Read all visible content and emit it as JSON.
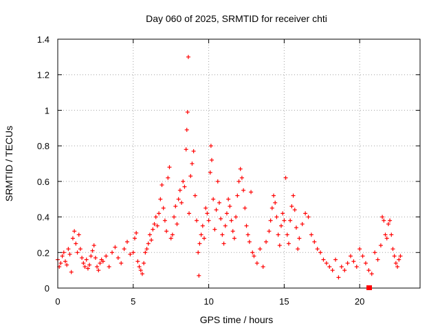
{
  "chart_data": {
    "type": "scatter",
    "title": "Day 060 of 2025, SRMTID for receiver chti",
    "xlabel": "GPS time / hours",
    "ylabel": "SRMTID / TECUs",
    "xlim": [
      0,
      24
    ],
    "ylim": [
      0,
      1.4
    ],
    "xticks": [
      0,
      5,
      10,
      15,
      20
    ],
    "yticks": [
      0,
      0.2,
      0.4,
      0.6,
      0.8,
      1,
      1.2,
      1.4
    ],
    "ytick_labels": [
      "0",
      "0.2",
      "0.4",
      "0.6",
      "0.8",
      "1",
      "1.2",
      "1.4"
    ],
    "grid": true,
    "marker": "plus",
    "series_color": "#ff0000",
    "series": [
      {
        "name": "SRMTID",
        "points": [
          [
            0.0,
            0.16
          ],
          [
            0.1,
            0.12
          ],
          [
            0.2,
            0.14
          ],
          [
            0.3,
            0.18
          ],
          [
            0.4,
            0.2
          ],
          [
            0.5,
            0.15
          ],
          [
            0.6,
            0.13
          ],
          [
            0.7,
            0.22
          ],
          [
            0.8,
            0.19
          ],
          [
            0.9,
            0.09
          ],
          [
            1.0,
            0.28
          ],
          [
            1.1,
            0.32
          ],
          [
            1.2,
            0.25
          ],
          [
            1.3,
            0.2
          ],
          [
            1.4,
            0.3
          ],
          [
            1.5,
            0.22
          ],
          [
            1.6,
            0.17
          ],
          [
            1.7,
            0.14
          ],
          [
            1.8,
            0.12
          ],
          [
            1.9,
            0.16
          ],
          [
            2.0,
            0.11
          ],
          [
            2.1,
            0.13
          ],
          [
            2.2,
            0.18
          ],
          [
            2.3,
            0.21
          ],
          [
            2.4,
            0.24
          ],
          [
            2.5,
            0.17
          ],
          [
            2.6,
            0.12
          ],
          [
            2.7,
            0.1
          ],
          [
            2.8,
            0.14
          ],
          [
            2.9,
            0.16
          ],
          [
            3.0,
            0.15
          ],
          [
            3.2,
            0.18
          ],
          [
            3.4,
            0.12
          ],
          [
            3.6,
            0.2
          ],
          [
            3.8,
            0.23
          ],
          [
            4.0,
            0.17
          ],
          [
            4.2,
            0.14
          ],
          [
            4.4,
            0.22
          ],
          [
            4.6,
            0.26
          ],
          [
            4.8,
            0.19
          ],
          [
            5.0,
            0.2
          ],
          [
            5.1,
            0.28
          ],
          [
            5.2,
            0.31
          ],
          [
            5.3,
            0.15
          ],
          [
            5.4,
            0.12
          ],
          [
            5.5,
            0.1
          ],
          [
            5.6,
            0.08
          ],
          [
            5.7,
            0.14
          ],
          [
            5.8,
            0.2
          ],
          [
            5.9,
            0.22
          ],
          [
            6.0,
            0.25
          ],
          [
            6.1,
            0.3
          ],
          [
            6.2,
            0.27
          ],
          [
            6.3,
            0.33
          ],
          [
            6.4,
            0.36
          ],
          [
            6.5,
            0.4
          ],
          [
            6.6,
            0.35
          ],
          [
            6.7,
            0.42
          ],
          [
            6.8,
            0.5
          ],
          [
            6.9,
            0.58
          ],
          [
            7.0,
            0.45
          ],
          [
            7.1,
            0.38
          ],
          [
            7.2,
            0.32
          ],
          [
            7.3,
            0.62
          ],
          [
            7.4,
            0.68
          ],
          [
            7.5,
            0.28
          ],
          [
            7.6,
            0.3
          ],
          [
            7.7,
            0.4
          ],
          [
            7.8,
            0.46
          ],
          [
            7.9,
            0.36
          ],
          [
            8.0,
            0.5
          ],
          [
            8.1,
            0.55
          ],
          [
            8.2,
            0.48
          ],
          [
            8.3,
            0.6
          ],
          [
            8.4,
            0.57
          ],
          [
            8.5,
            0.78
          ],
          [
            8.55,
            0.89
          ],
          [
            8.6,
            0.99
          ],
          [
            8.65,
            1.3
          ],
          [
            8.7,
            0.42
          ],
          [
            8.8,
            0.63
          ],
          [
            8.9,
            0.7
          ],
          [
            9.0,
            0.77
          ],
          [
            9.1,
            0.52
          ],
          [
            9.2,
            0.38
          ],
          [
            9.3,
            0.2
          ],
          [
            9.35,
            0.07
          ],
          [
            9.4,
            0.25
          ],
          [
            9.5,
            0.3
          ],
          [
            9.6,
            0.35
          ],
          [
            9.7,
            0.28
          ],
          [
            9.8,
            0.45
          ],
          [
            9.9,
            0.42
          ],
          [
            10.0,
            0.38
          ],
          [
            10.1,
            0.65
          ],
          [
            10.15,
            0.8
          ],
          [
            10.2,
            0.72
          ],
          [
            10.3,
            0.5
          ],
          [
            10.4,
            0.33
          ],
          [
            10.5,
            0.44
          ],
          [
            10.6,
            0.6
          ],
          [
            10.7,
            0.48
          ],
          [
            10.8,
            0.39
          ],
          [
            10.9,
            0.3
          ],
          [
            11.0,
            0.25
          ],
          [
            11.1,
            0.35
          ],
          [
            11.2,
            0.42
          ],
          [
            11.3,
            0.5
          ],
          [
            11.4,
            0.46
          ],
          [
            11.5,
            0.38
          ],
          [
            11.6,
            0.32
          ],
          [
            11.7,
            0.28
          ],
          [
            11.8,
            0.4
          ],
          [
            11.9,
            0.52
          ],
          [
            12.0,
            0.6
          ],
          [
            12.1,
            0.67
          ],
          [
            12.2,
            0.62
          ],
          [
            12.3,
            0.55
          ],
          [
            12.4,
            0.45
          ],
          [
            12.5,
            0.35
          ],
          [
            12.6,
            0.3
          ],
          [
            12.7,
            0.26
          ],
          [
            12.8,
            0.54
          ],
          [
            12.9,
            0.2
          ],
          [
            13.0,
            0.18
          ],
          [
            13.2,
            0.14
          ],
          [
            13.4,
            0.22
          ],
          [
            13.6,
            0.12
          ],
          [
            13.8,
            0.26
          ],
          [
            14.0,
            0.32
          ],
          [
            14.1,
            0.38
          ],
          [
            14.2,
            0.45
          ],
          [
            14.3,
            0.52
          ],
          [
            14.4,
            0.48
          ],
          [
            14.5,
            0.4
          ],
          [
            14.6,
            0.3
          ],
          [
            14.7,
            0.24
          ],
          [
            14.8,
            0.35
          ],
          [
            14.9,
            0.42
          ],
          [
            15.0,
            0.38
          ],
          [
            15.1,
            0.62
          ],
          [
            15.2,
            0.3
          ],
          [
            15.3,
            0.25
          ],
          [
            15.4,
            0.38
          ],
          [
            15.5,
            0.46
          ],
          [
            15.6,
            0.52
          ],
          [
            15.7,
            0.44
          ],
          [
            15.8,
            0.34
          ],
          [
            15.9,
            0.22
          ],
          [
            16.0,
            0.28
          ],
          [
            16.2,
            0.36
          ],
          [
            16.4,
            0.42
          ],
          [
            16.6,
            0.4
          ],
          [
            16.8,
            0.3
          ],
          [
            17.0,
            0.26
          ],
          [
            17.2,
            0.22
          ],
          [
            17.4,
            0.2
          ],
          [
            17.6,
            0.16
          ],
          [
            17.8,
            0.14
          ],
          [
            18.0,
            0.12
          ],
          [
            18.2,
            0.1
          ],
          [
            18.4,
            0.16
          ],
          [
            18.6,
            0.06
          ],
          [
            18.8,
            0.12
          ],
          [
            19.0,
            0.1
          ],
          [
            19.2,
            0.14
          ],
          [
            19.4,
            0.18
          ],
          [
            19.6,
            0.15
          ],
          [
            19.8,
            0.12
          ],
          [
            20.0,
            0.22
          ],
          [
            20.2,
            0.18
          ],
          [
            20.4,
            0.14
          ],
          [
            20.6,
            0.1
          ],
          [
            20.8,
            0.08
          ],
          [
            21.0,
            0.2
          ],
          [
            21.2,
            0.16
          ],
          [
            21.4,
            0.24
          ],
          [
            21.5,
            0.4
          ],
          [
            21.6,
            0.38
          ],
          [
            21.7,
            0.3
          ],
          [
            21.8,
            0.28
          ],
          [
            21.9,
            0.36
          ],
          [
            22.0,
            0.38
          ],
          [
            22.1,
            0.3
          ],
          [
            22.2,
            0.22
          ],
          [
            22.3,
            0.18
          ],
          [
            22.4,
            0.14
          ],
          [
            22.5,
            0.12
          ],
          [
            22.6,
            0.16
          ],
          [
            22.7,
            0.18
          ]
        ]
      }
    ]
  }
}
